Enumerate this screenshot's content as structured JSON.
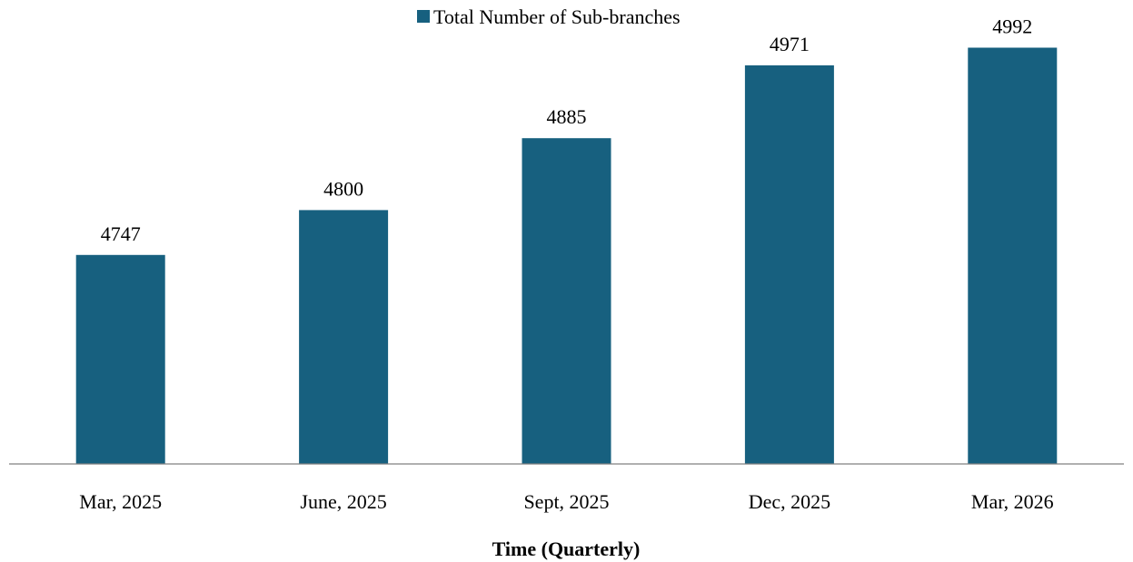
{
  "chart_data": {
    "type": "bar",
    "categories": [
      "Mar, 2025",
      "June, 2025",
      "Sept, 2025",
      "Dec, 2025",
      "Mar, 2026"
    ],
    "series": [
      {
        "name": "Total Number of Sub-branches",
        "values": [
          4747,
          4800,
          4885,
          4971,
          4992
        ],
        "color": "#17607f"
      }
    ],
    "data_labels": [
      "4747",
      "4800",
      "4885",
      "4971",
      "4992"
    ],
    "title": "",
    "xlabel": "Time (Quarterly)",
    "ylabel": "",
    "ylim": [
      4500,
      5000
    ],
    "y_axis_visible": false,
    "grid": false,
    "legend_position": "top-center",
    "axis_color": "#808080"
  }
}
